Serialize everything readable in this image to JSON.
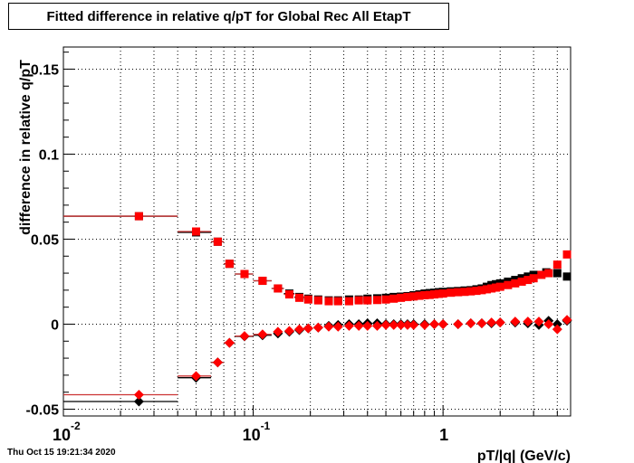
{
  "title": "Fitted difference in relative q/pT for Global Rec All EtapT",
  "timestamp": "Thu Oct 15 19:21:34 2020",
  "chart_data": {
    "type": "scatter",
    "title": "Fitted difference in relative q/pT for Global Rec All EtapT",
    "xlabel": "pT/|q| (GeV/c)",
    "ylabel": "difference in relative q/pT",
    "xscale": "log",
    "xlim": [
      0.01,
      4.7
    ],
    "ylim": [
      -0.054,
      0.163
    ],
    "grid": true,
    "x_ticks": [
      {
        "value": 0.01,
        "label": "10",
        "exp": "-2"
      },
      {
        "value": 0.1,
        "label": "10",
        "exp": "-1"
      },
      {
        "value": 1,
        "label": "1",
        "exp": ""
      }
    ],
    "y_ticks": [
      {
        "value": -0.05,
        "label": "-0.05"
      },
      {
        "value": 0,
        "label": "0"
      },
      {
        "value": 0.05,
        "label": "0.05"
      },
      {
        "value": 0.1,
        "label": "0.1"
      },
      {
        "value": 0.15,
        "label": "0.15"
      }
    ],
    "series": [
      {
        "marker": "square",
        "color": "#000000",
        "error_color": "#000000",
        "points": [
          {
            "x": 0.025,
            "xlo": 0.01,
            "xhi": 0.04,
            "y": 0.0635
          },
          {
            "x": 0.05,
            "xlo": 0.04,
            "xhi": 0.06,
            "y": 0.054
          },
          {
            "x": 0.065,
            "xlo": 0.06,
            "xhi": 0.07,
            "y": 0.0485
          },
          {
            "x": 0.075,
            "xlo": 0.07,
            "xhi": 0.08,
            "y": 0.0355
          },
          {
            "x": 0.09,
            "xlo": 0.08,
            "xhi": 0.1,
            "y": 0.0295
          },
          {
            "x": 0.112,
            "xlo": 0.1,
            "xhi": 0.125,
            "y": 0.0255
          },
          {
            "x": 0.135,
            "xlo": 0.125,
            "xhi": 0.145,
            "y": 0.021
          },
          {
            "x": 0.155,
            "xlo": 0.145,
            "xhi": 0.165,
            "y": 0.018
          },
          {
            "x": 0.175,
            "xlo": 0.165,
            "xhi": 0.185,
            "y": 0.016
          },
          {
            "x": 0.195,
            "xlo": 0.185,
            "xhi": 0.205,
            "y": 0.015
          },
          {
            "x": 0.22,
            "y": 0.0145
          },
          {
            "x": 0.25,
            "y": 0.014
          },
          {
            "x": 0.28,
            "y": 0.014
          },
          {
            "x": 0.32,
            "y": 0.0145
          },
          {
            "x": 0.36,
            "y": 0.0145
          },
          {
            "x": 0.4,
            "y": 0.015
          },
          {
            "x": 0.45,
            "y": 0.0152
          },
          {
            "x": 0.5,
            "y": 0.0155
          },
          {
            "x": 0.55,
            "y": 0.016
          },
          {
            "x": 0.6,
            "y": 0.0162
          },
          {
            "x": 0.65,
            "y": 0.0165
          },
          {
            "x": 0.7,
            "y": 0.017
          },
          {
            "x": 0.75,
            "y": 0.0175
          },
          {
            "x": 0.8,
            "y": 0.018
          },
          {
            "x": 0.85,
            "y": 0.0183
          },
          {
            "x": 0.9,
            "y": 0.0185
          },
          {
            "x": 0.95,
            "y": 0.0188
          },
          {
            "x": 1.0,
            "y": 0.019
          },
          {
            "x": 1.1,
            "y": 0.0193
          },
          {
            "x": 1.2,
            "y": 0.0195
          },
          {
            "x": 1.3,
            "y": 0.0198
          },
          {
            "x": 1.4,
            "y": 0.02
          },
          {
            "x": 1.5,
            "y": 0.0205
          },
          {
            "x": 1.6,
            "y": 0.021
          },
          {
            "x": 1.7,
            "y": 0.022
          },
          {
            "x": 1.8,
            "y": 0.023
          },
          {
            "x": 1.9,
            "y": 0.0235
          },
          {
            "x": 2.0,
            "y": 0.024
          },
          {
            "x": 2.2,
            "y": 0.025
          },
          {
            "x": 2.4,
            "y": 0.026
          },
          {
            "x": 2.6,
            "y": 0.027
          },
          {
            "x": 2.8,
            "y": 0.028
          },
          {
            "x": 3.0,
            "y": 0.029
          },
          {
            "x": 3.5,
            "y": 0.0305
          },
          {
            "x": 4.0,
            "y": 0.03
          },
          {
            "x": 4.5,
            "y": 0.028
          }
        ]
      },
      {
        "marker": "diamond",
        "color": "#000000",
        "error_color": "#000000",
        "points": [
          {
            "x": 0.025,
            "xlo": 0.01,
            "xhi": 0.04,
            "y": -0.0455
          },
          {
            "x": 0.05,
            "xlo": 0.04,
            "xhi": 0.06,
            "y": -0.0315
          },
          {
            "x": 0.065,
            "xlo": 0.06,
            "xhi": 0.07,
            "y": -0.0225
          },
          {
            "x": 0.075,
            "xlo": 0.07,
            "xhi": 0.08,
            "y": -0.011
          },
          {
            "x": 0.09,
            "xlo": 0.08,
            "xhi": 0.1,
            "y": -0.0072
          },
          {
            "x": 0.112,
            "xlo": 0.1,
            "xhi": 0.125,
            "y": -0.0065
          },
          {
            "x": 0.135,
            "y": -0.0055
          },
          {
            "x": 0.155,
            "y": -0.0045
          },
          {
            "x": 0.175,
            "y": -0.0035
          },
          {
            "x": 0.195,
            "y": -0.0025
          },
          {
            "x": 0.22,
            "y": -0.002
          },
          {
            "x": 0.25,
            "y": -0.001
          },
          {
            "x": 0.28,
            "y": -0.0005
          },
          {
            "x": 0.32,
            "y": 0.0
          },
          {
            "x": 0.36,
            "y": 0.0
          },
          {
            "x": 0.4,
            "y": 0.0005
          },
          {
            "x": 0.45,
            "y": 0.0005
          },
          {
            "x": 0.5,
            "y": 0.0
          },
          {
            "x": 0.55,
            "y": 0.0
          },
          {
            "x": 0.6,
            "y": 0.0
          },
          {
            "x": 0.65,
            "y": 0.0
          },
          {
            "x": 0.7,
            "y": 0.0
          },
          {
            "x": 0.8,
            "y": 0.0
          },
          {
            "x": 0.9,
            "y": 0.0
          },
          {
            "x": 1.0,
            "y": 0.0
          },
          {
            "x": 1.2,
            "y": 0.0
          },
          {
            "x": 1.4,
            "y": 0.0005
          },
          {
            "x": 1.6,
            "y": 0.0005
          },
          {
            "x": 1.8,
            "y": 0.0005
          },
          {
            "x": 2.0,
            "y": 0.001
          },
          {
            "x": 2.4,
            "y": 0.001
          },
          {
            "x": 2.8,
            "y": 0.0005
          },
          {
            "x": 3.2,
            "y": -0.0005
          },
          {
            "x": 3.6,
            "y": 0.002
          },
          {
            "x": 4.0,
            "y": 0.0
          },
          {
            "x": 4.5,
            "y": 0.002
          }
        ]
      },
      {
        "marker": "square",
        "color": "#ff0000",
        "error_color": "#cc3333",
        "points": [
          {
            "x": 0.025,
            "xlo": 0.01,
            "xhi": 0.04,
            "y": 0.0635
          },
          {
            "x": 0.05,
            "xlo": 0.04,
            "xhi": 0.06,
            "y": 0.0545
          },
          {
            "x": 0.065,
            "xlo": 0.06,
            "xhi": 0.07,
            "y": 0.0485
          },
          {
            "x": 0.075,
            "xlo": 0.07,
            "xhi": 0.08,
            "y": 0.0355
          },
          {
            "x": 0.09,
            "xlo": 0.08,
            "xhi": 0.1,
            "y": 0.0295
          },
          {
            "x": 0.112,
            "xlo": 0.1,
            "xhi": 0.125,
            "y": 0.0255
          },
          {
            "x": 0.135,
            "xlo": 0.125,
            "xhi": 0.145,
            "y": 0.021
          },
          {
            "x": 0.155,
            "xlo": 0.145,
            "xhi": 0.165,
            "y": 0.0175
          },
          {
            "x": 0.175,
            "xlo": 0.165,
            "xhi": 0.185,
            "y": 0.0155
          },
          {
            "x": 0.195,
            "xlo": 0.185,
            "xhi": 0.205,
            "y": 0.0145
          },
          {
            "x": 0.22,
            "y": 0.014
          },
          {
            "x": 0.25,
            "y": 0.0135
          },
          {
            "x": 0.28,
            "y": 0.0135
          },
          {
            "x": 0.32,
            "y": 0.0135
          },
          {
            "x": 0.36,
            "y": 0.014
          },
          {
            "x": 0.4,
            "y": 0.014
          },
          {
            "x": 0.45,
            "y": 0.0142
          },
          {
            "x": 0.5,
            "y": 0.0145
          },
          {
            "x": 0.55,
            "y": 0.015
          },
          {
            "x": 0.6,
            "y": 0.0155
          },
          {
            "x": 0.65,
            "y": 0.016
          },
          {
            "x": 0.7,
            "y": 0.0163
          },
          {
            "x": 0.75,
            "y": 0.0167
          },
          {
            "x": 0.8,
            "y": 0.017
          },
          {
            "x": 0.85,
            "y": 0.0172
          },
          {
            "x": 0.9,
            "y": 0.0175
          },
          {
            "x": 0.95,
            "y": 0.0178
          },
          {
            "x": 1.0,
            "y": 0.018
          },
          {
            "x": 1.1,
            "y": 0.0185
          },
          {
            "x": 1.2,
            "y": 0.0188
          },
          {
            "x": 1.3,
            "y": 0.019
          },
          {
            "x": 1.4,
            "y": 0.0193
          },
          {
            "x": 1.5,
            "y": 0.0196
          },
          {
            "x": 1.6,
            "y": 0.02
          },
          {
            "x": 1.7,
            "y": 0.0205
          },
          {
            "x": 1.8,
            "y": 0.021
          },
          {
            "x": 1.9,
            "y": 0.0215
          },
          {
            "x": 2.0,
            "y": 0.022
          },
          {
            "x": 2.2,
            "y": 0.023
          },
          {
            "x": 2.4,
            "y": 0.024
          },
          {
            "x": 2.6,
            "y": 0.025
          },
          {
            "x": 2.8,
            "y": 0.026
          },
          {
            "x": 3.0,
            "y": 0.027
          },
          {
            "x": 3.3,
            "y": 0.029
          },
          {
            "x": 3.6,
            "y": 0.03
          },
          {
            "x": 4.0,
            "y": 0.035
          },
          {
            "x": 4.5,
            "y": 0.041
          }
        ]
      },
      {
        "marker": "diamond",
        "color": "#ff0000",
        "error_color": "#cc3333",
        "points": [
          {
            "x": 0.025,
            "xlo": 0.01,
            "xhi": 0.04,
            "y": -0.0415
          },
          {
            "x": 0.05,
            "xlo": 0.04,
            "xhi": 0.06,
            "y": -0.0305
          },
          {
            "x": 0.065,
            "xlo": 0.06,
            "xhi": 0.07,
            "y": -0.0225
          },
          {
            "x": 0.075,
            "xlo": 0.07,
            "xhi": 0.08,
            "y": -0.011
          },
          {
            "x": 0.09,
            "xlo": 0.08,
            "xhi": 0.1,
            "y": -0.007
          },
          {
            "x": 0.112,
            "xlo": 0.1,
            "xhi": 0.125,
            "y": -0.006
          },
          {
            "x": 0.135,
            "y": -0.0045
          },
          {
            "x": 0.155,
            "y": -0.004
          },
          {
            "x": 0.175,
            "y": -0.003
          },
          {
            "x": 0.195,
            "y": -0.0025
          },
          {
            "x": 0.22,
            "y": -0.002
          },
          {
            "x": 0.25,
            "y": -0.0015
          },
          {
            "x": 0.28,
            "y": -0.0015
          },
          {
            "x": 0.32,
            "y": -0.001
          },
          {
            "x": 0.36,
            "y": -0.001
          },
          {
            "x": 0.4,
            "y": -0.001
          },
          {
            "x": 0.45,
            "y": -0.001
          },
          {
            "x": 0.5,
            "y": -0.0005
          },
          {
            "x": 0.55,
            "y": -0.0005
          },
          {
            "x": 0.6,
            "y": -0.0005
          },
          {
            "x": 0.65,
            "y": -0.0005
          },
          {
            "x": 0.7,
            "y": -0.0005
          },
          {
            "x": 0.8,
            "y": -0.0005
          },
          {
            "x": 0.9,
            "y": 0.0
          },
          {
            "x": 1.0,
            "y": 0.0
          },
          {
            "x": 1.2,
            "y": 0.0
          },
          {
            "x": 1.4,
            "y": 0.0005
          },
          {
            "x": 1.6,
            "y": 0.0005
          },
          {
            "x": 1.8,
            "y": 0.001
          },
          {
            "x": 2.0,
            "y": 0.001
          },
          {
            "x": 2.4,
            "y": 0.0015
          },
          {
            "x": 2.8,
            "y": 0.0015
          },
          {
            "x": 3.2,
            "y": 0.0015
          },
          {
            "x": 3.6,
            "y": 0.0
          },
          {
            "x": 4.0,
            "y": -0.003
          },
          {
            "x": 4.5,
            "y": 0.0025
          }
        ]
      }
    ]
  }
}
